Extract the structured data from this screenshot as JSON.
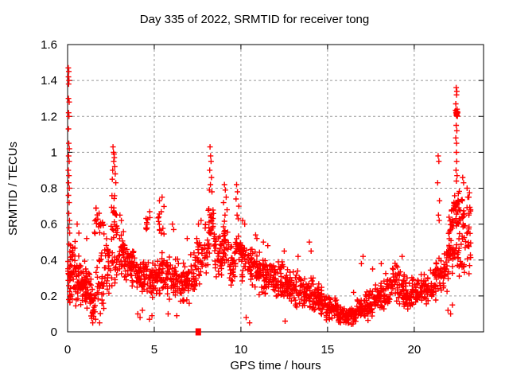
{
  "chart_data": {
    "type": "scatter",
    "title": "Day 335 of 2022, SRMTID for receiver tong",
    "xlabel": "GPS time / hours",
    "ylabel": "SRMTID / TECUs",
    "xlim": [
      0,
      24
    ],
    "ylim": [
      0,
      1.6
    ],
    "xticks": [
      0,
      5,
      10,
      15,
      20
    ],
    "xtick_labels": [
      "0",
      "5",
      "10",
      "15",
      "20"
    ],
    "yticks": [
      0,
      0.2,
      0.4,
      0.6,
      0.8,
      1,
      1.2,
      1.4,
      1.6
    ],
    "ytick_labels": [
      "0",
      "0.2",
      "0.4",
      "0.6",
      "0.8",
      "1",
      "1.2",
      "1.4",
      "1.6"
    ],
    "grid": true,
    "grid_color": "#999999",
    "axis_color": "#000000",
    "marker": "plus",
    "marker_color": "#ff0000",
    "legend": "none",
    "envelope_bins_note": "dense scatter approximated as [x_start, x_end, y_low, y_high, n_points] bins read from the plot",
    "envelope": [
      [
        0.02,
        0.18,
        0.12,
        0.52,
        24
      ],
      [
        0.15,
        0.45,
        0.15,
        0.52,
        30
      ],
      [
        0.45,
        0.75,
        0.12,
        0.46,
        30
      ],
      [
        0.75,
        1.05,
        0.12,
        0.42,
        30
      ],
      [
        1.05,
        1.35,
        0.1,
        0.38,
        28
      ],
      [
        1.35,
        1.6,
        0.06,
        0.28,
        24
      ],
      [
        1.55,
        2.1,
        0.52,
        0.72,
        20
      ],
      [
        1.6,
        2.1,
        0.08,
        0.48,
        32
      ],
      [
        2.1,
        2.5,
        0.18,
        0.55,
        28
      ],
      [
        2.5,
        2.85,
        0.45,
        0.8,
        22
      ],
      [
        2.5,
        2.85,
        0.25,
        0.5,
        16
      ],
      [
        2.85,
        3.25,
        0.3,
        0.62,
        28
      ],
      [
        3.25,
        3.6,
        0.28,
        0.5,
        28
      ],
      [
        3.6,
        3.95,
        0.25,
        0.47,
        28
      ],
      [
        3.95,
        4.3,
        0.2,
        0.43,
        28
      ],
      [
        4.3,
        4.65,
        0.2,
        0.42,
        26
      ],
      [
        4.5,
        4.75,
        0.55,
        0.68,
        9
      ],
      [
        4.65,
        5.0,
        0.18,
        0.4,
        27
      ],
      [
        5.0,
        5.35,
        0.2,
        0.42,
        27
      ],
      [
        5.2,
        5.6,
        0.5,
        0.72,
        12
      ],
      [
        5.35,
        5.7,
        0.2,
        0.45,
        26
      ],
      [
        5.7,
        6.05,
        0.18,
        0.45,
        26
      ],
      [
        6.05,
        6.4,
        0.18,
        0.42,
        26
      ],
      [
        6.4,
        6.75,
        0.15,
        0.4,
        26
      ],
      [
        6.75,
        7.1,
        0.15,
        0.4,
        26
      ],
      [
        7.1,
        7.45,
        0.2,
        0.48,
        26
      ],
      [
        7.45,
        7.9,
        0.25,
        0.55,
        26
      ],
      [
        7.9,
        8.2,
        0.32,
        0.62,
        22
      ],
      [
        8.1,
        8.45,
        0.45,
        0.75,
        24
      ],
      [
        8.45,
        8.8,
        0.3,
        0.58,
        26
      ],
      [
        8.8,
        9.0,
        0.28,
        0.52,
        15
      ],
      [
        8.95,
        9.3,
        0.35,
        0.62,
        24
      ],
      [
        9.3,
        9.65,
        0.25,
        0.5,
        24
      ],
      [
        9.65,
        10.0,
        0.32,
        0.6,
        24
      ],
      [
        10.0,
        10.35,
        0.28,
        0.55,
        26
      ],
      [
        10.35,
        10.7,
        0.25,
        0.5,
        26
      ],
      [
        10.7,
        11.05,
        0.22,
        0.48,
        26
      ],
      [
        11.05,
        11.4,
        0.2,
        0.45,
        26
      ],
      [
        11.4,
        11.75,
        0.18,
        0.42,
        26
      ],
      [
        11.75,
        12.1,
        0.18,
        0.4,
        26
      ],
      [
        12.1,
        12.45,
        0.15,
        0.4,
        26
      ],
      [
        12.45,
        12.8,
        0.15,
        0.38,
        26
      ],
      [
        12.8,
        13.15,
        0.13,
        0.35,
        26
      ],
      [
        13.15,
        13.5,
        0.12,
        0.35,
        26
      ],
      [
        13.5,
        13.85,
        0.12,
        0.32,
        26
      ],
      [
        13.85,
        14.2,
        0.1,
        0.32,
        26
      ],
      [
        14.2,
        14.55,
        0.1,
        0.28,
        26
      ],
      [
        14.55,
        14.9,
        0.08,
        0.26,
        26
      ],
      [
        14.9,
        15.25,
        0.06,
        0.22,
        28
      ],
      [
        15.25,
        15.6,
        0.05,
        0.2,
        28
      ],
      [
        15.6,
        15.95,
        0.04,
        0.17,
        28
      ],
      [
        15.95,
        16.3,
        0.03,
        0.15,
        28
      ],
      [
        16.3,
        16.65,
        0.03,
        0.16,
        28
      ],
      [
        16.65,
        17.0,
        0.05,
        0.2,
        28
      ],
      [
        17.0,
        17.35,
        0.06,
        0.24,
        26
      ],
      [
        17.35,
        17.7,
        0.08,
        0.27,
        26
      ],
      [
        17.7,
        18.05,
        0.1,
        0.3,
        26
      ],
      [
        18.05,
        18.4,
        0.1,
        0.33,
        26
      ],
      [
        18.4,
        18.75,
        0.12,
        0.33,
        26
      ],
      [
        18.75,
        19.15,
        0.15,
        0.41,
        28
      ],
      [
        19.15,
        19.5,
        0.13,
        0.35,
        26
      ],
      [
        19.5,
        19.85,
        0.12,
        0.32,
        26
      ],
      [
        19.85,
        20.2,
        0.12,
        0.32,
        26
      ],
      [
        20.2,
        20.55,
        0.13,
        0.33,
        26
      ],
      [
        20.55,
        20.9,
        0.14,
        0.35,
        26
      ],
      [
        20.9,
        21.25,
        0.16,
        0.38,
        26
      ],
      [
        21.25,
        21.6,
        0.18,
        0.45,
        26
      ],
      [
        21.6,
        21.95,
        0.2,
        0.5,
        26
      ],
      [
        21.95,
        22.25,
        0.28,
        0.58,
        24
      ],
      [
        22.0,
        22.25,
        0.5,
        0.75,
        12
      ],
      [
        22.25,
        22.6,
        0.55,
        0.82,
        30
      ],
      [
        22.25,
        22.6,
        0.3,
        0.55,
        16
      ],
      [
        22.38,
        22.5,
        1.17,
        1.28,
        10
      ],
      [
        22.6,
        22.95,
        0.45,
        0.78,
        22
      ],
      [
        22.6,
        22.95,
        0.28,
        0.45,
        10
      ],
      [
        22.95,
        23.3,
        0.3,
        0.62,
        16
      ],
      [
        23.0,
        23.3,
        0.55,
        0.78,
        8
      ]
    ],
    "outliers": [
      [
        0.04,
        1.47
      ],
      [
        0.07,
        1.45
      ],
      [
        0.05,
        1.42
      ],
      [
        0.08,
        1.4
      ],
      [
        0.06,
        1.38
      ],
      [
        0.05,
        1.3
      ],
      [
        0.09,
        1.28
      ],
      [
        0.06,
        1.22
      ],
      [
        0.08,
        1.2
      ],
      [
        0.05,
        1.13
      ],
      [
        0.07,
        1.05
      ],
      [
        0.1,
        1.02
      ],
      [
        0.06,
        0.98
      ],
      [
        0.09,
        0.95
      ],
      [
        0.04,
        0.9
      ],
      [
        0.08,
        0.87
      ],
      [
        0.06,
        0.83
      ],
      [
        0.1,
        0.8
      ],
      [
        0.05,
        0.76
      ],
      [
        0.09,
        0.72
      ],
      [
        0.07,
        0.66
      ],
      [
        0.11,
        0.62
      ],
      [
        0.08,
        0.58
      ],
      [
        0.12,
        0.55
      ],
      [
        0.55,
        0.6
      ],
      [
        0.65,
        0.55
      ],
      [
        1.1,
        0.52
      ],
      [
        1.45,
        0.05
      ],
      [
        1.62,
        0.07
      ],
      [
        1.85,
        0.05
      ],
      [
        2.62,
        1.03
      ],
      [
        2.65,
        1.0
      ],
      [
        2.68,
        0.99
      ],
      [
        2.7,
        0.97
      ],
      [
        2.66,
        0.95
      ],
      [
        2.72,
        0.92
      ],
      [
        2.6,
        0.9
      ],
      [
        2.75,
        0.88
      ],
      [
        2.58,
        0.85
      ],
      [
        2.78,
        0.83
      ],
      [
        3.02,
        0.65
      ],
      [
        3.1,
        0.62
      ],
      [
        4.05,
        0.1
      ],
      [
        4.18,
        0.08
      ],
      [
        4.32,
        0.12
      ],
      [
        4.72,
        0.07
      ],
      [
        4.87,
        0.09
      ],
      [
        5.3,
        0.73
      ],
      [
        5.45,
        0.75
      ],
      [
        5.8,
        0.1
      ],
      [
        6.3,
        0.09
      ],
      [
        6.05,
        0.6
      ],
      [
        6.12,
        0.57
      ],
      [
        6.9,
        0.52
      ],
      [
        7.55,
        0.6
      ],
      [
        7.7,
        0.62
      ],
      [
        8.18,
        0.79
      ],
      [
        8.2,
        0.9
      ],
      [
        8.22,
        1.03
      ],
      [
        8.24,
        0.82
      ],
      [
        8.25,
        0.98
      ],
      [
        8.28,
        0.95
      ],
      [
        8.3,
        0.86
      ],
      [
        8.33,
        0.78
      ],
      [
        9.0,
        0.72
      ],
      [
        9.05,
        0.82
      ],
      [
        9.08,
        0.65
      ],
      [
        9.1,
        0.79
      ],
      [
        9.15,
        0.75
      ],
      [
        9.2,
        0.68
      ],
      [
        9.72,
        0.74
      ],
      [
        9.75,
        0.82
      ],
      [
        9.78,
        0.65
      ],
      [
        9.8,
        0.78
      ],
      [
        9.85,
        0.63
      ],
      [
        9.88,
        0.7
      ],
      [
        10.1,
        0.62
      ],
      [
        10.22,
        0.6
      ],
      [
        10.3,
        0.08
      ],
      [
        10.5,
        0.05
      ],
      [
        10.85,
        0.54
      ],
      [
        10.92,
        0.52
      ],
      [
        11.3,
        0.5
      ],
      [
        11.55,
        0.48
      ],
      [
        12.5,
        0.45
      ],
      [
        12.55,
        0.06
      ],
      [
        13.3,
        0.42
      ],
      [
        13.95,
        0.5
      ],
      [
        14.05,
        0.45
      ],
      [
        16.5,
        0.22
      ],
      [
        16.95,
        0.38
      ],
      [
        17.05,
        0.42
      ],
      [
        17.6,
        0.35
      ],
      [
        18.1,
        0.38
      ],
      [
        19.3,
        0.42
      ],
      [
        21.35,
        0.83
      ],
      [
        21.38,
        0.98
      ],
      [
        21.4,
        0.65
      ],
      [
        21.42,
        0.95
      ],
      [
        21.44,
        0.62
      ],
      [
        21.46,
        0.73
      ],
      [
        21.95,
        0.12
      ],
      [
        22.1,
        0.1
      ],
      [
        22.2,
        0.15
      ],
      [
        22.4,
        1.08
      ],
      [
        22.4,
        1.27
      ],
      [
        22.41,
        0.9
      ],
      [
        22.41,
        1.22
      ],
      [
        22.42,
        1.15
      ],
      [
        22.42,
        1.36
      ],
      [
        22.43,
        0.84
      ],
      [
        22.43,
        1.0
      ],
      [
        22.44,
        1.05
      ],
      [
        22.44,
        1.32
      ],
      [
        22.45,
        0.95
      ],
      [
        22.45,
        1.21
      ],
      [
        22.46,
        1.12
      ],
      [
        22.46,
        1.34
      ],
      [
        22.47,
        0.87
      ],
      [
        22.47,
        1.24
      ],
      [
        22.8,
        0.86
      ],
      [
        22.85,
        0.83
      ],
      [
        23.05,
        0.8
      ],
      [
        23.15,
        0.75
      ],
      [
        23.25,
        0.68
      ]
    ],
    "special_points": [
      {
        "x": 7.54,
        "y": 0.0,
        "marker": "filled-square",
        "color": "#ff0000"
      }
    ]
  }
}
